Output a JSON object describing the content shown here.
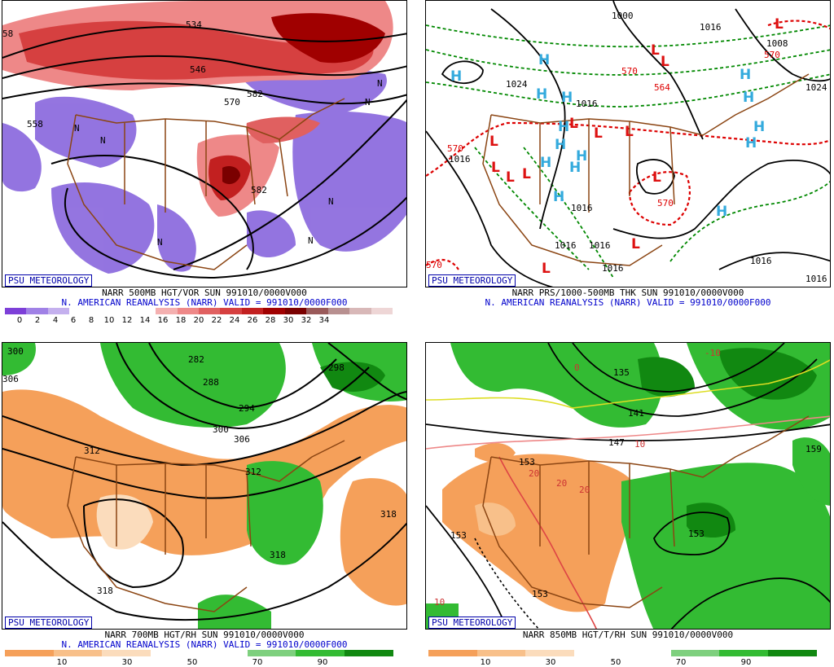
{
  "badge_text": "PSU METEOROLOGY",
  "colors": {
    "border_brown": "#8b4513",
    "h_blue": "#33aadd",
    "l_red": "#dd1111",
    "thickness_green": "#008800",
    "thickness_red": "#dd0000",
    "vort_red": "#cc2222",
    "vort_purple": "#8866dd",
    "rh_green": "#33bb33",
    "rh_orange": "#f5a05a"
  },
  "panels": [
    {
      "id": "p500",
      "title": "NARR 500MB HGT/VOR SUN 991010/0000V000",
      "subtitle": "N. AMERICAN REANALYSIS (NARR) VALID = 991010/0000F000",
      "contour_labels": [
        "534",
        "546",
        "558",
        "570",
        "582",
        "582",
        "58"
      ],
      "markers": [
        "N",
        "N",
        "N",
        "N",
        "N",
        "N",
        "N"
      ],
      "scale": {
        "colors": [
          "#7d3fd8",
          "#a081e6",
          "#c4b0ee",
          "#ffffff",
          "#ffffff",
          "#ffffff",
          "#ffffff",
          "#f4b0b0",
          "#ee8888",
          "#e06060",
          "#d64040",
          "#c22020",
          "#a00000",
          "#7a0000",
          "#9a5a5a",
          "#b89090",
          "#d8b8b8",
          "#eed6d6"
        ],
        "ticks": [
          "0",
          "2",
          "4",
          "6",
          "8",
          "10",
          "12",
          "14",
          "16",
          "18",
          "20",
          "22",
          "24",
          "26",
          "28",
          "30",
          "32",
          "34"
        ]
      }
    },
    {
      "id": "pmslp",
      "title": "NARR PRS/1000-500MB THK SUN 991010/0000V000",
      "subtitle": "N. AMERICAN REANALYSIS (NARR) VALID = 991010/0000F000",
      "isobar_labels": [
        "1000",
        "1016",
        "1008",
        "1024",
        "1016",
        "1024",
        "1016",
        "1016",
        "1016",
        "1016",
        "1016",
        "1016",
        "1016"
      ],
      "thickness_labels": [
        "570",
        "570",
        "570",
        "570",
        "564",
        "570"
      ],
      "highs": [
        "H",
        "H",
        "H",
        "H",
        "H",
        "H",
        "H",
        "H",
        "H",
        "H",
        "H",
        "H",
        "H",
        "H",
        "H"
      ],
      "lows": [
        "L",
        "L",
        "L",
        "L",
        "L",
        "L",
        "L",
        "L",
        "L",
        "L",
        "L",
        "L",
        "L"
      ]
    },
    {
      "id": "p700",
      "title": "NARR 700MB HGT/RH SUN 991010/0000V000",
      "subtitle": "N. AMERICAN REANALYSIS (NARR) VALID = 991010/0000F000",
      "contour_labels": [
        "300",
        "306",
        "282",
        "288",
        "294",
        "298",
        "300",
        "306",
        "312",
        "312",
        "318",
        "318",
        "318"
      ],
      "scale": {
        "colors": [
          "#f5a05a",
          "#f8c08a",
          "#fbdcbc",
          "#ffffff",
          "#ffffff",
          "#7ed07e",
          "#33bb33",
          "#118811"
        ],
        "ticks": [
          "10",
          "30",
          "50",
          "70",
          "90"
        ]
      }
    },
    {
      "id": "p850",
      "title": "NARR 850MB HGT/T/RH SUN 991010/0000V000",
      "subtitle": "",
      "height_labels": [
        "135",
        "141",
        "147",
        "153",
        "153",
        "153",
        "159",
        "153"
      ],
      "temp_labels": [
        "-10",
        "0",
        "10",
        "20",
        "20",
        "20",
        "10"
      ],
      "scale": {
        "colors": [
          "#f5a05a",
          "#f8c08a",
          "#fbdcbc",
          "#ffffff",
          "#ffffff",
          "#7ed07e",
          "#33bb33",
          "#118811"
        ],
        "ticks": [
          "10",
          "30",
          "50",
          "70",
          "90"
        ]
      }
    }
  ]
}
